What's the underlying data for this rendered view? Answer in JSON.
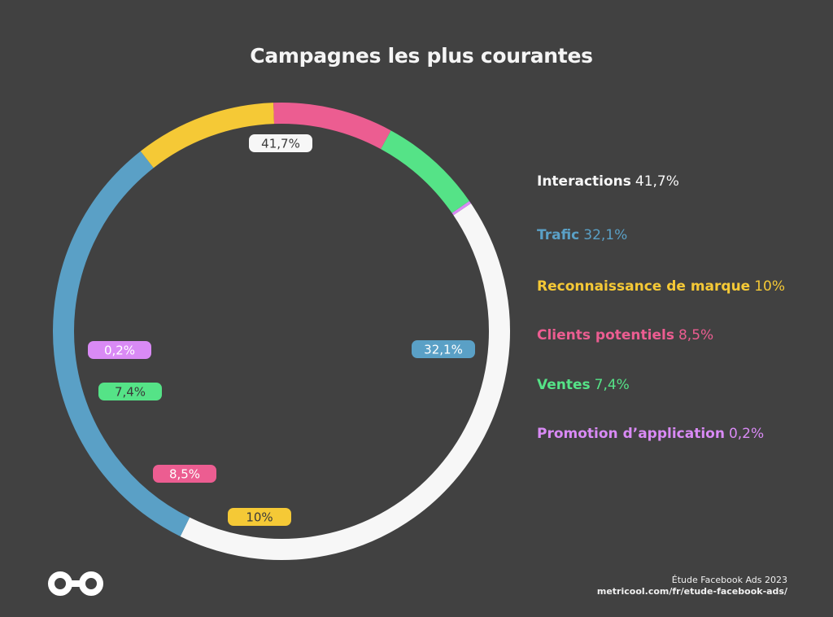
{
  "title": "Campagnes les plus courantes",
  "colors": {
    "background": "#414141",
    "interactions": "#f7f7f7",
    "trafic": "#5aa0c6",
    "marque": "#f5c936",
    "clients": "#ec5d91",
    "ventes": "#55e387",
    "promotion": "#d98af5"
  },
  "chart_data": {
    "type": "pie",
    "variant": "donut",
    "title": "Campagnes les plus courantes",
    "legend_placement": "right",
    "series": [
      {
        "name": "Interactions",
        "value": 41.7,
        "label": "41,7%",
        "legend_value": "41,7%",
        "color": "#f7f7f7",
        "label_text_color": "#3a3a3a"
      },
      {
        "name": "Trafic",
        "value": 32.1,
        "label": "32,1%",
        "legend_value": "32,1%",
        "color": "#5aa0c6",
        "label_text_color": "#ffffff"
      },
      {
        "name": "Reconnaissance de marque",
        "value": 10,
        "label": "10%",
        "legend_value": "10%",
        "color": "#f5c936",
        "label_text_color": "#3a3a3a"
      },
      {
        "name": "Clients potentiels",
        "value": 8.5,
        "label": "8,5%",
        "legend_value": "8,5%",
        "color": "#ec5d91",
        "label_text_color": "#ffffff"
      },
      {
        "name": "Ventes",
        "value": 7.4,
        "label": "7,4%",
        "legend_value": "7,4%",
        "color": "#55e387",
        "label_text_color": "#3a3a3a"
      },
      {
        "name": "Promotion d’application",
        "value": 0.2,
        "label": "0,2%",
        "legend_value": "0,2%",
        "color": "#d98af5",
        "label_text_color": "#ffffff"
      }
    ]
  },
  "footer": {
    "study": "Étude Facebook Ads 2023",
    "url": "metricool.com/fr/etude-facebook-ads/"
  },
  "logo": {
    "icon": "metricool-infinity-logo-icon"
  }
}
